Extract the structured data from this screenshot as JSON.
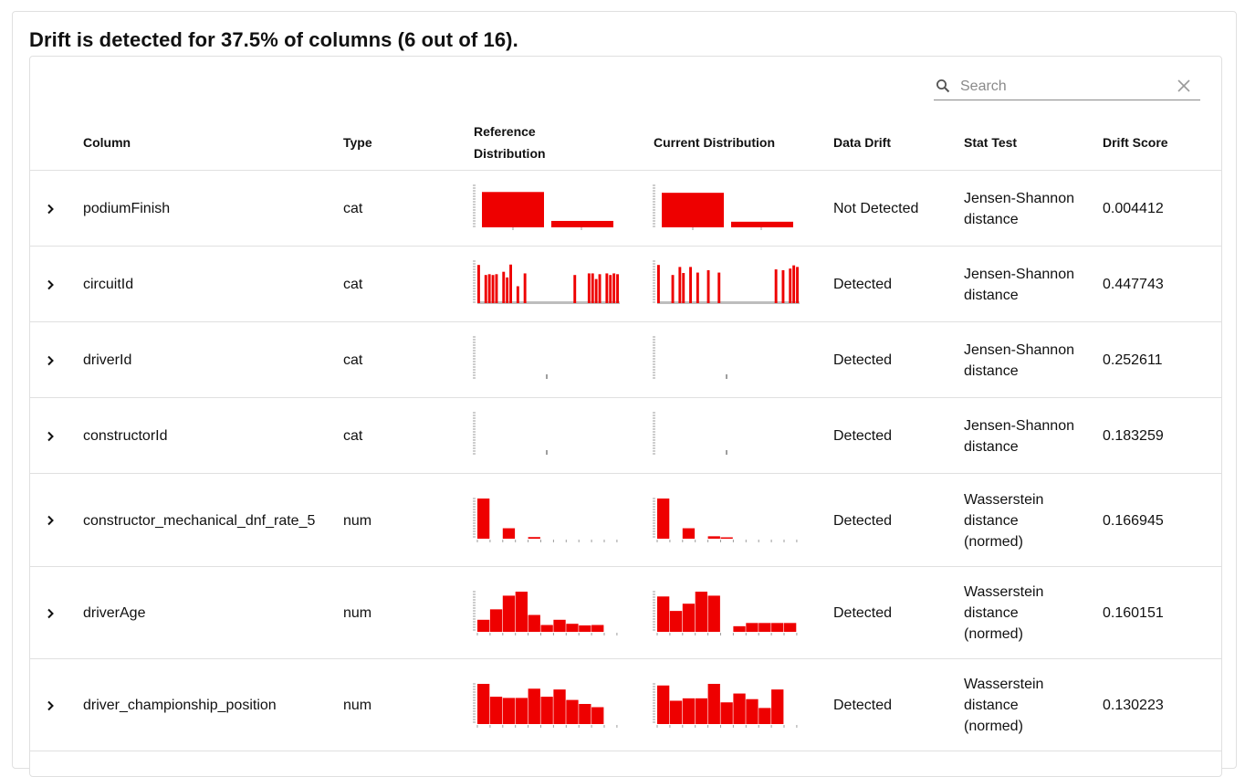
{
  "heading": "Drift is detected for 37.5% of columns (6 out of 16).",
  "search": {
    "placeholder": "Search",
    "value": ""
  },
  "icons": {
    "search": "search-icon",
    "clear": "close-icon",
    "expand": "chevron-right-icon"
  },
  "colors": {
    "bar": "#ee0000",
    "axis": "#bdbdbd",
    "border": "#e0e0e0"
  },
  "table": {
    "headers": {
      "column": "Column",
      "type": "Type",
      "reference": [
        "Reference",
        "Distribution"
      ],
      "current": "Current Distribution",
      "drift": "Data Drift",
      "stattest": "Stat Test",
      "score": "Drift Score"
    },
    "rows": [
      {
        "column": "podiumFinish",
        "type": "cat",
        "drift": "Not Detected",
        "stattest": [
          "Jensen-Shannon",
          "distance"
        ],
        "score": "0.004412",
        "chart": "cat",
        "ref": [
          0.88,
          0.16
        ],
        "cur": [
          0.86,
          0.14
        ]
      },
      {
        "column": "circuitId",
        "type": "cat",
        "drift": "Detected",
        "stattest": [
          "Jensen-Shannon",
          "distance"
        ],
        "score": "0.447743",
        "chart": "catmany",
        "ref": [
          0.95,
          0,
          0.7,
          0.72,
          0.7,
          0.72,
          0,
          0.78,
          0.64,
          0.96,
          0,
          0.42,
          0,
          0.74,
          0,
          0,
          0,
          0,
          0,
          0,
          0,
          0,
          0,
          0,
          0,
          0,
          0,
          0.7,
          0,
          0,
          0,
          0.74,
          0.74,
          0.6,
          0.72,
          0,
          0.74,
          0.7,
          0.74,
          0.72
        ],
        "cur": [
          0.95,
          0,
          0,
          0,
          0.7,
          0,
          0.9,
          0.75,
          0,
          0.9,
          0,
          0.76,
          0,
          0,
          0.82,
          0,
          0,
          0.76,
          0,
          0,
          0,
          0,
          0,
          0,
          0,
          0,
          0,
          0,
          0,
          0,
          0,
          0,
          0,
          0.84,
          0,
          0.82,
          0,
          0.86,
          0.94,
          0.9
        ]
      },
      {
        "column": "driverId",
        "type": "cat",
        "drift": "Detected",
        "stattest": [
          "Jensen-Shannon",
          "distance"
        ],
        "score": "0.252611",
        "chart": "catsparse",
        "ref": [
          0.08
        ],
        "cur": [
          0.08
        ]
      },
      {
        "column": "constructorId",
        "type": "cat",
        "drift": "Detected",
        "stattest": [
          "Jensen-Shannon",
          "distance"
        ],
        "score": "0.183259",
        "chart": "catsparse",
        "ref": [
          0.08
        ],
        "cur": [
          0.08
        ]
      },
      {
        "column": "constructor_mechanical_dnf_rate_5",
        "type": "num",
        "drift": "Detected",
        "stattest": [
          "Wasserstein",
          "distance",
          "(normed)"
        ],
        "score": "0.166945",
        "chart": "num",
        "ref": [
          1.0,
          0,
          0.26,
          0,
          0.04,
          0,
          0,
          0,
          0,
          0,
          0
        ],
        "cur": [
          1.0,
          0,
          0.26,
          0,
          0.06,
          0.03,
          0,
          0,
          0,
          0,
          0
        ]
      },
      {
        "column": "driverAge",
        "type": "num",
        "drift": "Detected",
        "stattest": [
          "Wasserstein",
          "distance",
          "(normed)"
        ],
        "score": "0.160151",
        "chart": "num",
        "ref": [
          0.3,
          0.56,
          0.9,
          1.0,
          0.42,
          0.17,
          0.3,
          0.2,
          0.16,
          0.17
        ],
        "cur": [
          0.88,
          0.52,
          0.7,
          1.0,
          0.9,
          0,
          0.14,
          0.22,
          0.22,
          0.22,
          0.22
        ]
      },
      {
        "column": "driver_championship_position",
        "type": "num",
        "drift": "Detected",
        "stattest": [
          "Wasserstein",
          "distance",
          "(normed)"
        ],
        "score": "0.130223",
        "chart": "num",
        "ref": [
          1.0,
          0.68,
          0.65,
          0.65,
          0.88,
          0.68,
          0.86,
          0.6,
          0.5,
          0.42
        ],
        "cur": [
          0.96,
          0.58,
          0.64,
          0.64,
          1.0,
          0.54,
          0.76,
          0.62,
          0.4,
          0.86
        ]
      }
    ]
  }
}
